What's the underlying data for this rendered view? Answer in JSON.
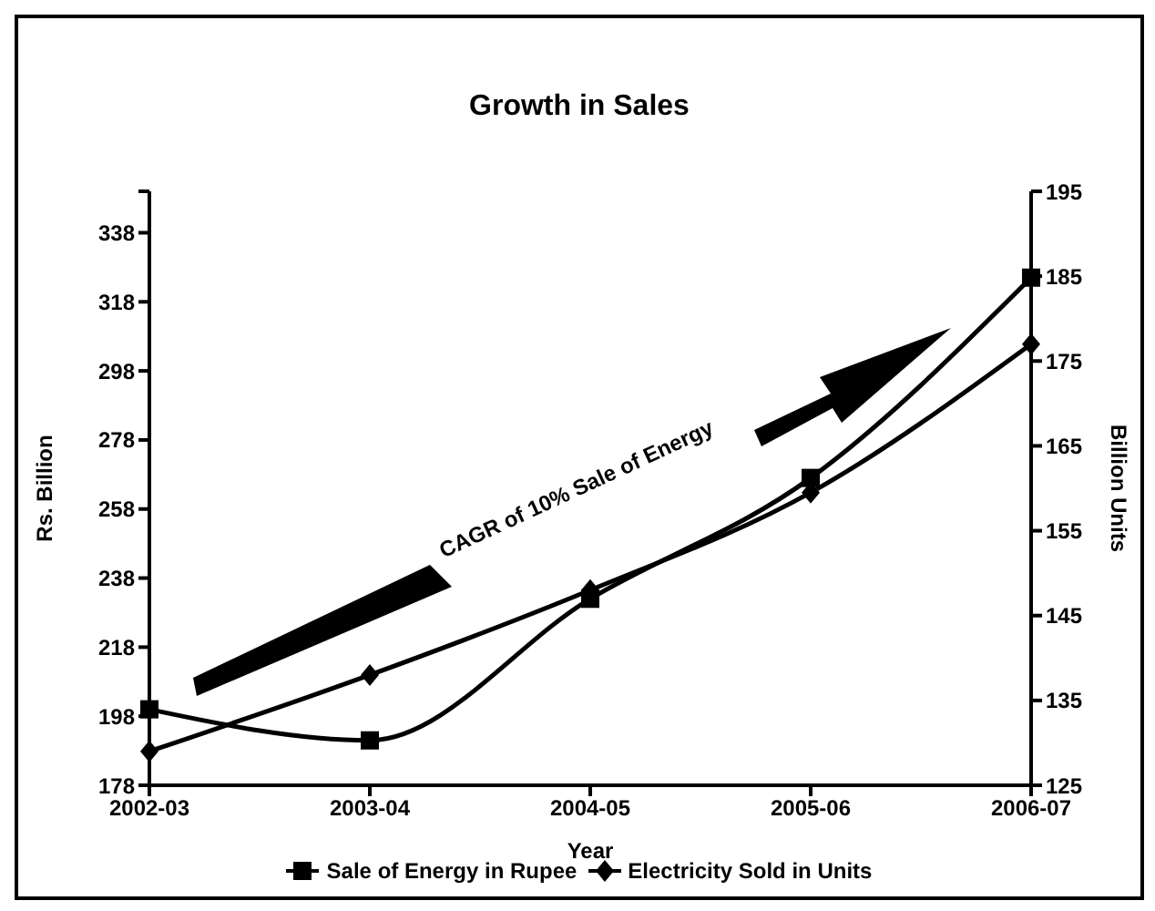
{
  "chart_data": {
    "type": "line",
    "title": "Growth in Sales",
    "xlabel": "Year",
    "ylabel": "Rs. Billion",
    "y2label": "Billion Units",
    "categories": [
      "2002-03",
      "2003-04",
      "2004-05",
      "2005-06",
      "2006-07"
    ],
    "series": [
      {
        "name": "Sale of Energy in Rupee",
        "color": "#000000",
        "marker": "square",
        "values": [
          200,
          191,
          232,
          267,
          325
        ]
      },
      {
        "name": "Electricity Sold in Units",
        "color": "#000000",
        "marker": "diamond",
        "axis": "y2",
        "values": [
          129,
          138,
          148,
          159.5,
          177
        ]
      }
    ],
    "ylim": [
      178,
      350
    ],
    "yticks": [
      178,
      198,
      218,
      238,
      258,
      278,
      298,
      318,
      338,
      {
        "value": 350,
        "label": null
      }
    ],
    "y2lim": [
      125,
      195
    ],
    "y2ticks": [
      125,
      135,
      145,
      155,
      165,
      175,
      185,
      195
    ],
    "legend": "bottom",
    "line_style": "solid",
    "annotations": [
      "CAGR of 10% Sale of Energy"
    ]
  }
}
